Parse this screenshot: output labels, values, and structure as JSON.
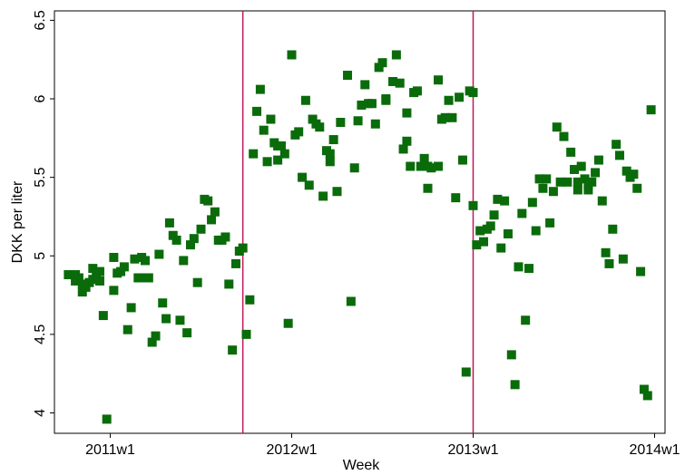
{
  "chart_data": {
    "type": "scatter",
    "xlabel": "Week",
    "ylabel": "DKK per liter",
    "xlim": [
      2636,
      2811
    ],
    "ylim": [
      3.87,
      6.56
    ],
    "xticks": [
      {
        "value": 2652,
        "label": "2011w1"
      },
      {
        "value": 2704,
        "label": "2012w1"
      },
      {
        "value": 2756,
        "label": "2013w1"
      },
      {
        "value": 2808,
        "label": "2014w1"
      }
    ],
    "yticks": [
      4,
      4.5,
      5,
      5.5,
      6,
      6.5
    ],
    "grid": false,
    "reference_lines": [
      2690,
      2756
    ],
    "reference_line_color": "#c2185b",
    "series": [
      {
        "color": "#0a6b0a",
        "x": [
          2640,
          2642,
          2642,
          2643,
          2644,
          2644,
          2645,
          2646,
          2647,
          2647,
          2648,
          2649,
          2649,
          2650,
          2651,
          2653,
          2653,
          2654,
          2655,
          2656,
          2657,
          2658,
          2659,
          2660,
          2661,
          2662,
          2662,
          2663,
          2664,
          2665,
          2666,
          2667,
          2668,
          2669,
          2670,
          2671,
          2672,
          2673,
          2674,
          2675,
          2676,
          2677,
          2678,
          2679,
          2680,
          2681,
          2682,
          2683,
          2684,
          2685,
          2686,
          2687,
          2688,
          2689,
          2690,
          2691,
          2692,
          2693,
          2694,
          2695,
          2696,
          2697,
          2698,
          2699,
          2700,
          2700,
          2701,
          2702,
          2703,
          2704,
          2705,
          2706,
          2707,
          2708,
          2709,
          2710,
          2711,
          2712,
          2713,
          2714,
          2715,
          2715,
          2716,
          2717,
          2718,
          2720,
          2721,
          2722,
          2723,
          2724,
          2725,
          2726,
          2727,
          2728,
          2729,
          2730,
          2731,
          2731,
          2733,
          2734,
          2735,
          2736,
          2737,
          2737,
          2738,
          2739,
          2740,
          2741,
          2742,
          2743,
          2743,
          2744,
          2746,
          2746,
          2747,
          2748,
          2749,
          2750,
          2751,
          2752,
          2753,
          2754,
          2755,
          2756,
          2756,
          2757,
          2758,
          2759,
          2760,
          2761,
          2762,
          2763,
          2764,
          2765,
          2766,
          2767,
          2768,
          2769,
          2770,
          2771,
          2772,
          2773,
          2774,
          2775,
          2776,
          2777,
          2778,
          2779,
          2780,
          2781,
          2782,
          2783,
          2784,
          2785,
          2786,
          2786,
          2787,
          2788,
          2789,
          2789,
          2790,
          2791,
          2792,
          2793,
          2794,
          2795,
          2796,
          2797,
          2798,
          2799,
          2800,
          2801,
          2802,
          2803,
          2804,
          2805,
          2806,
          2807
        ],
        "values": [
          4.88,
          4.84,
          4.88,
          4.86,
          4.82,
          4.77,
          4.8,
          4.83,
          4.85,
          4.92,
          4.88,
          4.9,
          4.84,
          4.62,
          3.96,
          4.78,
          4.99,
          4.89,
          4.9,
          4.93,
          4.53,
          4.67,
          4.98,
          4.86,
          4.99,
          4.86,
          4.97,
          4.86,
          4.45,
          4.49,
          5.01,
          4.7,
          4.6,
          5.21,
          5.13,
          5.1,
          4.59,
          4.97,
          4.51,
          5.07,
          5.11,
          4.83,
          5.17,
          5.36,
          5.35,
          5.23,
          5.28,
          5.1,
          5.1,
          5.12,
          4.82,
          4.4,
          4.95,
          5.03,
          5.05,
          4.5,
          4.72,
          5.65,
          5.92,
          6.06,
          5.8,
          5.6,
          5.87,
          5.72,
          5.61,
          5.7,
          5.7,
          5.65,
          4.57,
          6.28,
          5.77,
          5.79,
          5.5,
          5.99,
          5.45,
          5.87,
          5.84,
          5.82,
          5.38,
          5.67,
          5.65,
          5.6,
          5.74,
          5.41,
          5.85,
          6.15,
          4.71,
          5.56,
          5.86,
          5.96,
          6.09,
          5.97,
          5.97,
          5.84,
          6.2,
          6.23,
          6.0,
          5.99,
          6.11,
          6.28,
          6.1,
          5.68,
          5.91,
          5.73,
          5.57,
          6.04,
          6.05,
          5.57,
          5.62,
          5.57,
          5.43,
          5.56,
          6.12,
          5.57,
          5.87,
          5.88,
          5.99,
          5.88,
          5.37,
          6.01,
          5.61,
          4.26,
          6.05,
          6.04,
          5.32,
          5.07,
          5.16,
          5.09,
          5.17,
          5.19,
          5.26,
          5.36,
          5.05,
          5.35,
          5.14,
          4.37,
          4.18,
          4.93,
          5.27,
          4.59,
          4.92,
          5.34,
          5.16,
          5.49,
          5.43,
          5.49,
          5.21,
          5.41,
          5.82,
          5.47,
          5.76,
          5.47,
          5.66,
          5.55,
          5.42,
          5.47,
          5.57,
          5.49,
          5.42,
          5.45,
          5.47,
          5.53,
          5.61,
          5.35,
          5.02,
          4.95,
          5.17,
          5.71,
          5.64,
          4.98,
          5.54,
          5.5,
          5.52,
          5.43,
          4.9,
          4.15,
          4.11,
          5.93
        ]
      }
    ]
  }
}
